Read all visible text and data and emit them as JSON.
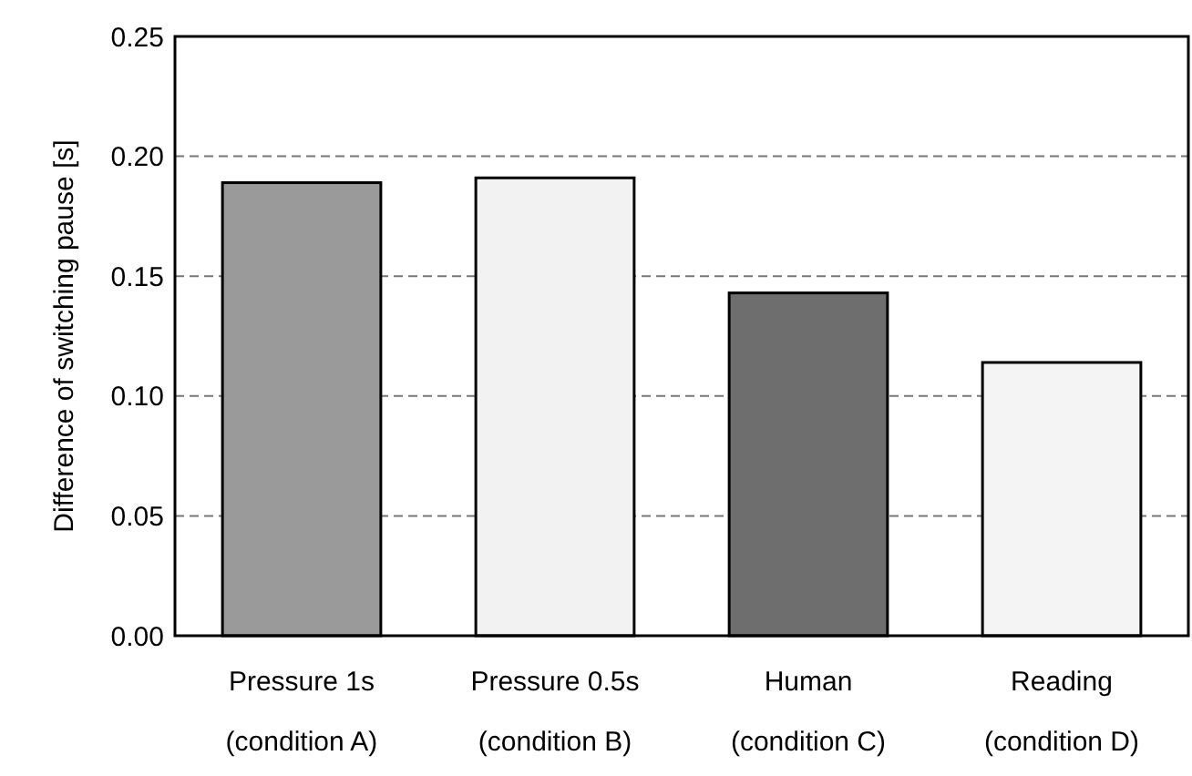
{
  "chart_data": {
    "type": "bar",
    "ylabel": "Difference of switching pause [s]",
    "categories": [
      "Pressure 1s\n(condition A)",
      "Pressure 0.5s\n(condition B)",
      "Human\n(condition C)",
      "Reading\n(condition D)"
    ],
    "values": [
      0.189,
      0.191,
      0.143,
      0.114
    ],
    "colors": [
      "#9a9a9a",
      "#f2f2f2",
      "#6e6e6e",
      "#f4f4f4"
    ],
    "ylim": [
      0,
      0.25
    ],
    "yticks": [
      {
        "value": 0,
        "label": "0.00"
      },
      {
        "value": 0.05,
        "label": "0.05"
      },
      {
        "value": 0.1,
        "label": "0.10"
      },
      {
        "value": 0.15,
        "label": "0.15"
      },
      {
        "value": 0.2,
        "label": "0.20"
      },
      {
        "value": 0.25,
        "label": "0.25"
      }
    ],
    "grid": "y"
  }
}
